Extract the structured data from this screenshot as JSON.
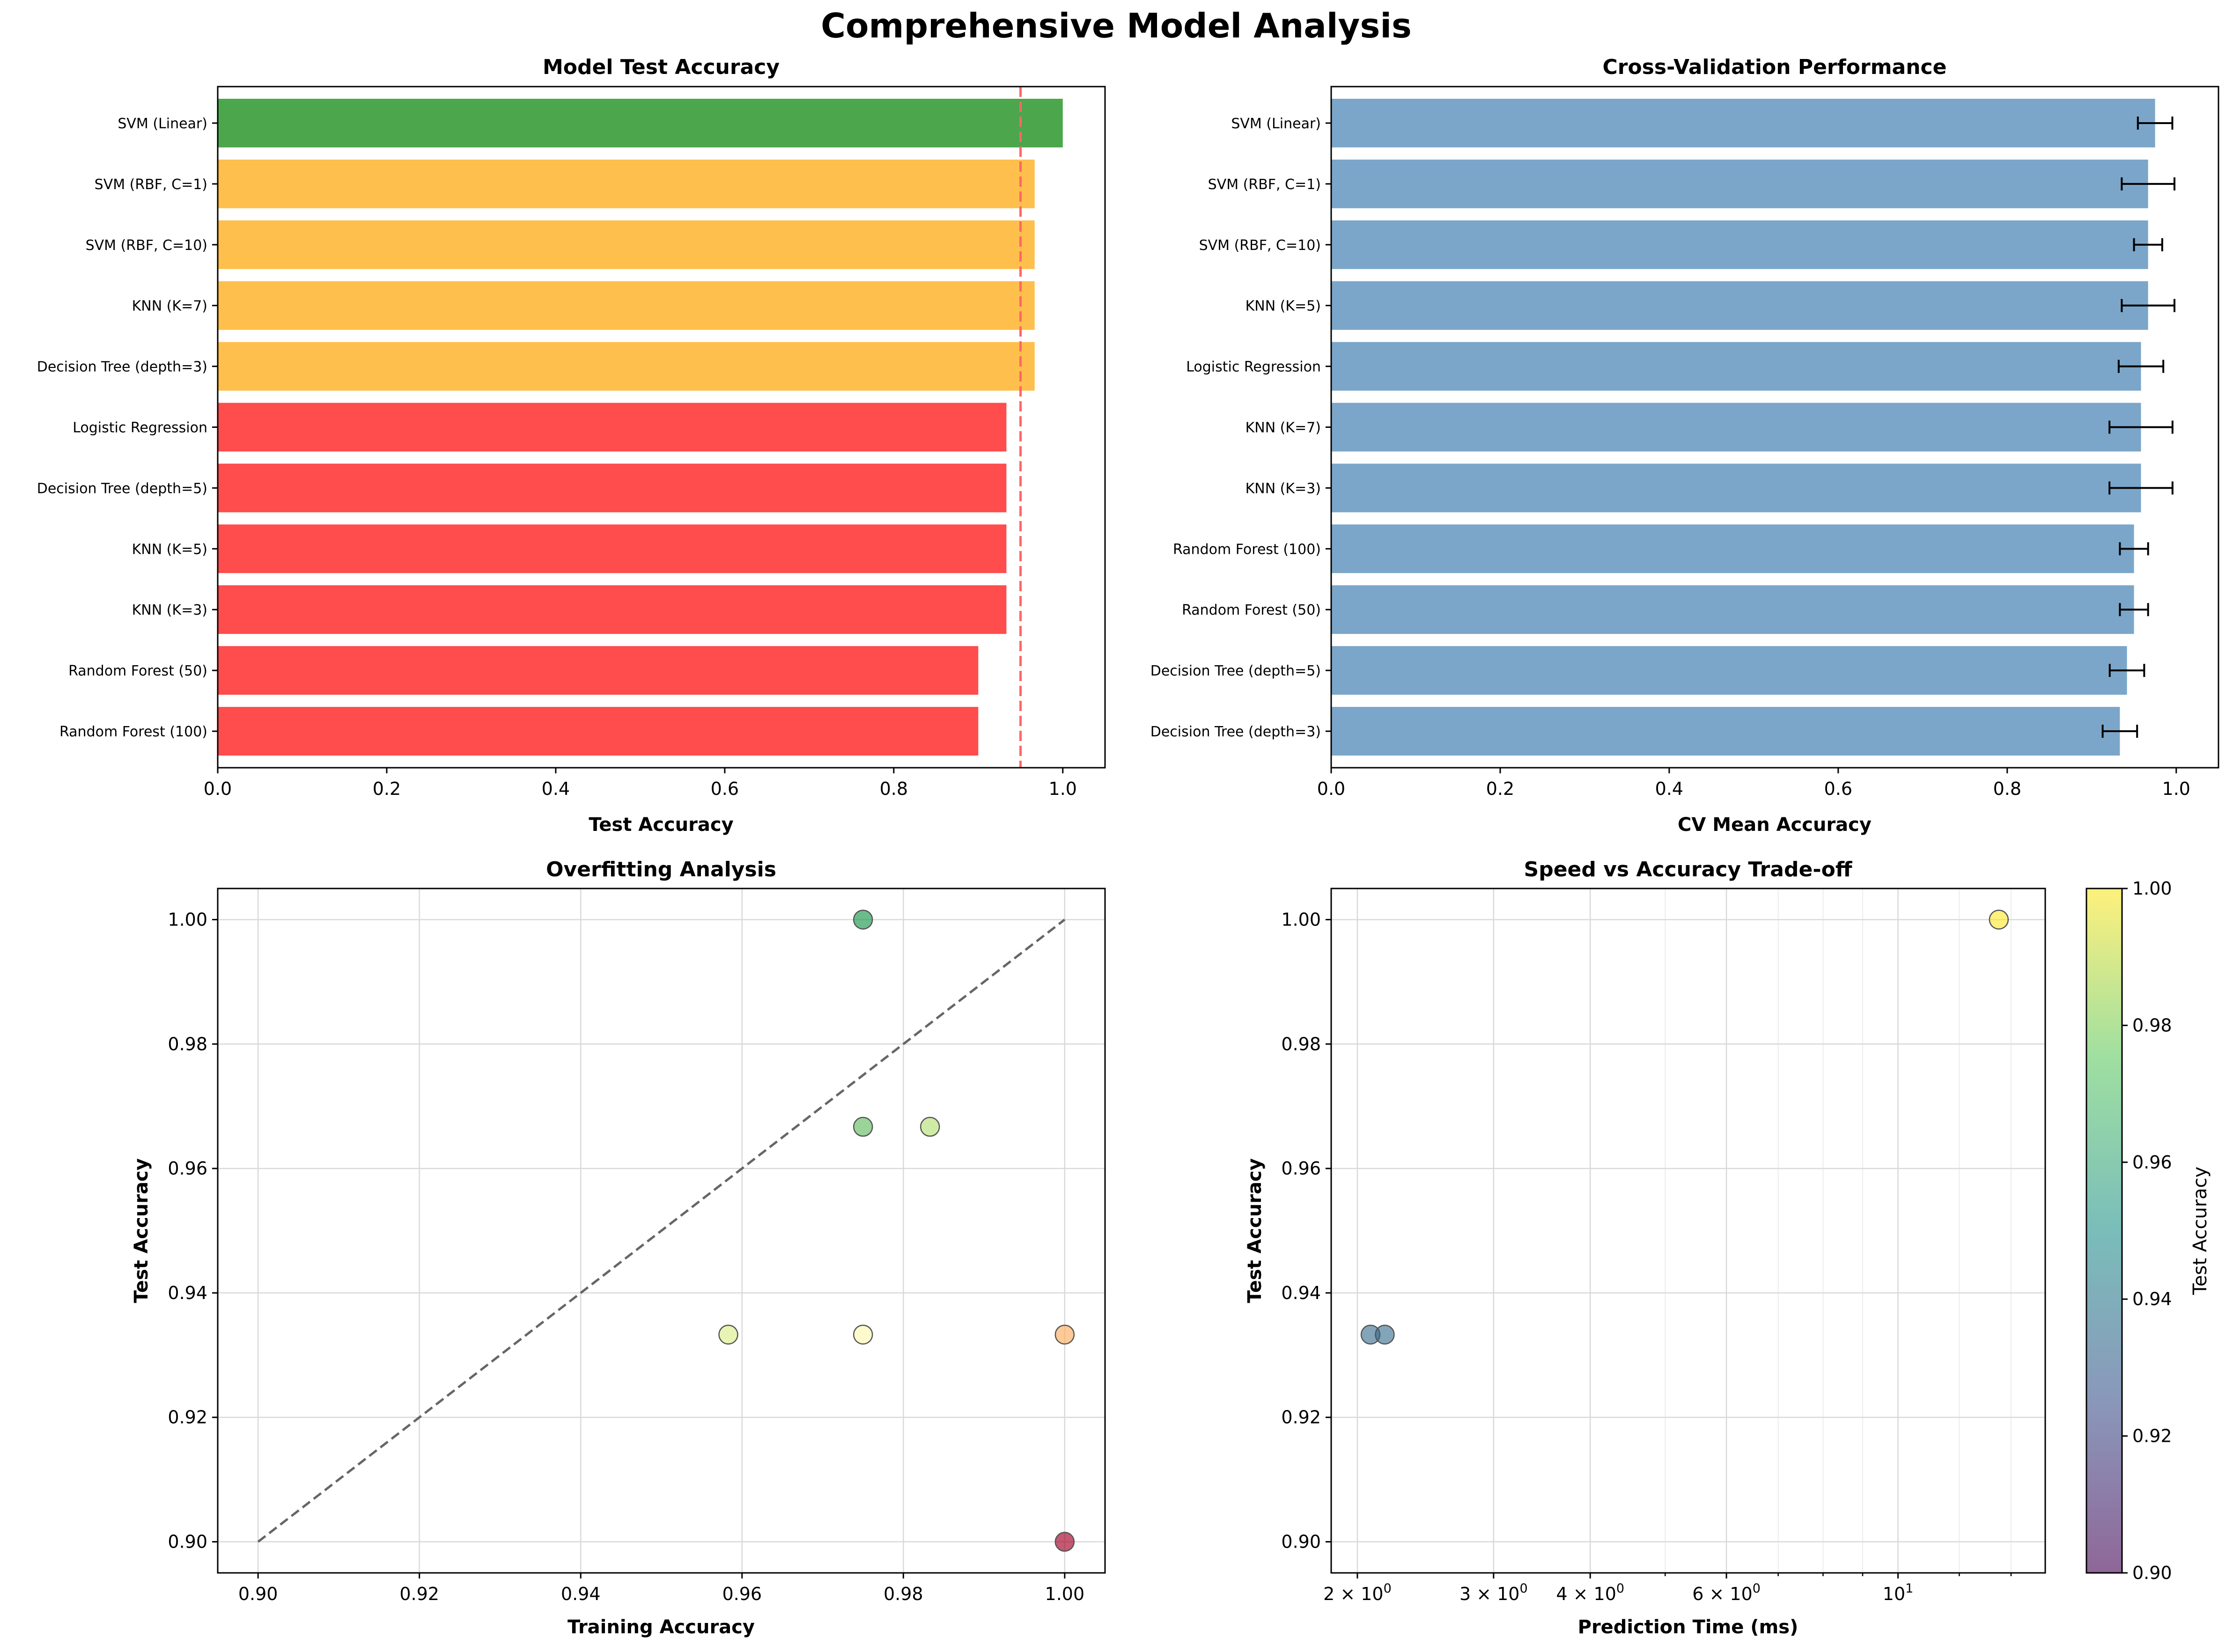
{
  "figure_title": "Comprehensive Model Analysis",
  "chart_data": [
    {
      "id": "test_accuracy",
      "type": "bar",
      "orientation": "horizontal",
      "title": "Model Test Accuracy",
      "xlabel": "Test Accuracy",
      "ylabel": "",
      "xlim": [
        0,
        1.05
      ],
      "xticks": [
        "0.0",
        "0.2",
        "0.4",
        "0.6",
        "0.8",
        "1.0"
      ],
      "categories": [
        "SVM (Linear)",
        "SVM (RBF, C=1)",
        "SVM (RBF, C=10)",
        "KNN (K=7)",
        "Decision Tree (depth=3)",
        "Logistic Regression",
        "Decision Tree (depth=5)",
        "KNN (K=5)",
        "KNN (K=3)",
        "Random Forest (50)",
        "Random Forest (100)"
      ],
      "values": [
        1.0,
        0.9667,
        0.9667,
        0.9667,
        0.9667,
        0.9333,
        0.9333,
        0.9333,
        0.9333,
        0.9,
        0.9
      ],
      "bar_colors": [
        "#4ca64c",
        "#ffbf4c",
        "#ffbf4c",
        "#ffbf4c",
        "#ffbf4c",
        "#ff4c4c",
        "#ff4c4c",
        "#ff4c4c",
        "#ff4c4c",
        "#ff4c4c",
        "#ff4c4c"
      ],
      "reference_line": {
        "x": 0.95,
        "color": "#ff6666",
        "style": "dashed"
      },
      "grid": false
    },
    {
      "id": "cv_performance",
      "type": "bar",
      "orientation": "horizontal",
      "title": "Cross-Validation Performance",
      "xlabel": "CV Mean Accuracy",
      "ylabel": "",
      "xlim": [
        0,
        1.05
      ],
      "xticks": [
        "0.0",
        "0.2",
        "0.4",
        "0.6",
        "0.8",
        "1.0"
      ],
      "categories": [
        "SVM (Linear)",
        "SVM (RBF, C=1)",
        "SVM (RBF, C=10)",
        "KNN (K=5)",
        "Logistic Regression",
        "KNN (K=7)",
        "KNN (K=3)",
        "Random Forest (100)",
        "Random Forest (50)",
        "Decision Tree (depth=5)",
        "Decision Tree (depth=3)"
      ],
      "values": [
        0.975,
        0.9667,
        0.9667,
        0.9667,
        0.9583,
        0.9583,
        0.9583,
        0.95,
        0.95,
        0.9417,
        0.9333
      ],
      "errors": [
        0.0204,
        0.0312,
        0.0167,
        0.0312,
        0.0264,
        0.0373,
        0.0373,
        0.0167,
        0.0167,
        0.0204,
        0.0204
      ],
      "bar_color": "#7ba6c9",
      "grid": false
    },
    {
      "id": "overfitting",
      "type": "scatter",
      "title": "Overfitting Analysis",
      "xlabel": "Training Accuracy",
      "ylabel": "Test Accuracy",
      "xlim": [
        0.895,
        1.005
      ],
      "ylim": [
        0.895,
        1.005
      ],
      "xticks": [
        "0.90",
        "0.92",
        "0.94",
        "0.96",
        "0.98",
        "1.00"
      ],
      "yticks": [
        "0.90",
        "0.92",
        "0.94",
        "0.96",
        "0.98",
        "1.00"
      ],
      "points": [
        {
          "x": 0.975,
          "y": 1.0,
          "color": "#1a9850"
        },
        {
          "x": 0.975,
          "y": 0.9667,
          "color": "#66bd63"
        },
        {
          "x": 0.9833,
          "y": 0.9667,
          "color": "#b7e075"
        },
        {
          "x": 0.9583,
          "y": 0.9333,
          "color": "#d9ef8b"
        },
        {
          "x": 0.975,
          "y": 0.9333,
          "color": "#fff7b0"
        },
        {
          "x": 1.0,
          "y": 0.9333,
          "color": "#fdae61"
        },
        {
          "x": 1.0,
          "y": 0.9,
          "color": "#a50026"
        }
      ],
      "diagonal_line": {
        "from": [
          0.9,
          0.9
        ],
        "to": [
          1.0,
          1.0
        ],
        "color": "#666666",
        "style": "dashed"
      },
      "grid": true
    },
    {
      "id": "speed_vs_accuracy",
      "type": "scatter",
      "title": "Speed vs Accuracy Trade-off",
      "xlabel": "Prediction Time (ms)",
      "ylabel": "Test Accuracy",
      "x_scale": "log",
      "xlim": [
        1.85,
        15.5
      ],
      "ylim": [
        0.895,
        1.005
      ],
      "yticks": [
        "0.90",
        "0.92",
        "0.94",
        "0.96",
        "0.98",
        "1.00"
      ],
      "xticks": [
        {
          "value": 2,
          "base": "2 × 10",
          "exp": "0"
        },
        {
          "value": 3,
          "base": "3 × 10",
          "exp": "0"
        },
        {
          "value": 4,
          "base": "4 × 10",
          "exp": "0"
        },
        {
          "value": 6,
          "base": "6 × 10",
          "exp": "0"
        },
        {
          "value": 10,
          "base": "10",
          "exp": "1"
        }
      ],
      "points": [
        {
          "x": 2.08,
          "y": 0.9333
        },
        {
          "x": 2.17,
          "y": 0.9333
        },
        {
          "x": 13.5,
          "y": 1.0
        }
      ],
      "colormap": "viridis",
      "colorbar": {
        "label": "Test Accuracy",
        "range": [
          0.9,
          1.0
        ],
        "ticks": [
          "0.90",
          "0.92",
          "0.94",
          "0.96",
          "0.98",
          "1.00"
        ]
      },
      "grid": true
    }
  ]
}
